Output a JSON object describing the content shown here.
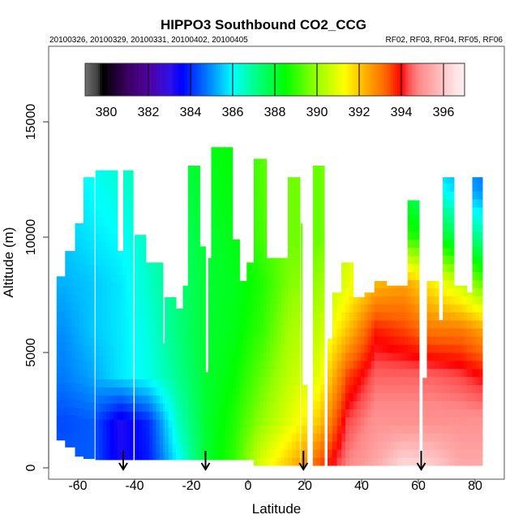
{
  "chart_data": {
    "type": "heatmap",
    "title": "HIPPO3 Southbound CO2_CCG",
    "subtitle_left": "20100326, 20100329, 20100331, 20100402, 20100405",
    "subtitle_right": "RF02, RF03, RF04, RF05, RF06",
    "xlabel": "Latitude",
    "ylabel": "Altitude (m)",
    "xlim": [
      -70,
      90
    ],
    "ylim": [
      -500,
      18300
    ],
    "xticks": [
      -60,
      -40,
      -20,
      0,
      20,
      40,
      60,
      80
    ],
    "xtick_labels": [
      "-60",
      "-40",
      "-20",
      "0",
      "20",
      "40",
      "60",
      "80"
    ],
    "yticks": [
      0,
      5000,
      10000,
      15000
    ],
    "ytick_labels": [
      "0",
      "5000",
      "10000",
      "15000"
    ],
    "colorbar": {
      "range": [
        379,
        397
      ],
      "ticks": [
        380,
        382,
        384,
        386,
        388,
        390,
        392,
        394,
        396
      ],
      "tick_labels": [
        "380",
        "382",
        "384",
        "386",
        "388",
        "390",
        "392",
        "394",
        "396"
      ],
      "stops": [
        [
          379.0,
          "#707070"
        ],
        [
          379.6,
          "#404040"
        ],
        [
          379.8,
          "#000000"
        ],
        [
          381.0,
          "#3a0060"
        ],
        [
          382.0,
          "#5000a0"
        ],
        [
          383.0,
          "#3010e8"
        ],
        [
          383.6,
          "#0000ff"
        ],
        [
          385.0,
          "#0090ff"
        ],
        [
          386.0,
          "#00ffff"
        ],
        [
          387.0,
          "#00ff90"
        ],
        [
          388.5,
          "#00ff00"
        ],
        [
          390.0,
          "#99ff00"
        ],
        [
          391.3,
          "#ffff00"
        ],
        [
          392.3,
          "#ffb000"
        ],
        [
          393.3,
          "#ff6000"
        ],
        [
          394.0,
          "#ff0000"
        ],
        [
          394.3,
          "#ff4848"
        ],
        [
          394.8,
          "#ff8888"
        ],
        [
          395.5,
          "#ffaaaa"
        ],
        [
          396.1,
          "#ffcccc"
        ],
        [
          396.5,
          "#ffe0e0"
        ],
        [
          397.0,
          "#fff0f0"
        ]
      ]
    },
    "arrows_lat": [
      -44,
      -15,
      19.5,
      61
    ],
    "grid": {
      "lat": [
        -65,
        -55,
        -45,
        -35,
        -25,
        -15,
        -5,
        5,
        15,
        25,
        35,
        45,
        55,
        65,
        75,
        82
      ],
      "alt": [
        0,
        2000,
        4000,
        6000,
        8000,
        10000,
        12000,
        14000
      ],
      "co2": [
        [
          384.5,
          384.3,
          384.8,
          385.0,
          385.3,
          385.5,
          385.8,
          386.0
        ],
        [
          384.5,
          384.5,
          385.2,
          385.5,
          385.5,
          385.8,
          386.0,
          386.2
        ],
        [
          383.3,
          383.2,
          385.8,
          385.8,
          385.8,
          386.0,
          386.3,
          386.5
        ],
        [
          383.8,
          384.0,
          386.2,
          386.3,
          386.5,
          386.6,
          386.8,
          387.0
        ],
        [
          385.8,
          386.5,
          387.0,
          387.2,
          387.2,
          387.4,
          387.6,
          387.8
        ],
        [
          388.0,
          388.0,
          388.0,
          388.0,
          388.0,
          388.0,
          388.2,
          388.3
        ],
        [
          389.0,
          388.8,
          388.5,
          388.3,
          388.2,
          388.3,
          388.4,
          388.5
        ],
        [
          391.0,
          390.0,
          389.5,
          389.0,
          388.8,
          389.2,
          389.3,
          389.4
        ],
        [
          392.2,
          391.0,
          390.5,
          390.2,
          389.8,
          389.6,
          389.6,
          389.6
        ],
        [
          393.5,
          392.0,
          391.0,
          390.5,
          390.0,
          389.5,
          389.5,
          389.5
        ],
        [
          394.8,
          394.3,
          393.5,
          392.0,
          391.0,
          390.5,
          390.5,
          390.5
        ],
        [
          395.5,
          395.0,
          394.5,
          393.8,
          392.2,
          391.5,
          391.5,
          391.5
        ],
        [
          396.5,
          395.0,
          394.5,
          393.5,
          392.5,
          389.0,
          388.0,
          388.0
        ],
        [
          396.2,
          395.0,
          394.5,
          393.0,
          391.5,
          388.5,
          386.5,
          385.0
        ],
        [
          395.5,
          395.0,
          394.3,
          393.0,
          390.5,
          387.5,
          385.5,
          384.5
        ],
        [
          395.5,
          395.0,
          394.0,
          392.5,
          389.5,
          387.0,
          385.0,
          384.5
        ]
      ]
    },
    "profiles": [
      {
        "lat": [
          -67.5,
          -64.5
        ],
        "alt": [
          1200,
          8300
        ]
      },
      {
        "lat": [
          -64.5,
          -61
        ],
        "alt": [
          900,
          9400
        ]
      },
      {
        "lat": [
          -61,
          -58
        ],
        "alt": [
          500,
          10600
        ]
      },
      {
        "lat": [
          -58,
          -54.2
        ],
        "alt": [
          400,
          12600
        ]
      },
      {
        "lat": [
          -53.8,
          -46
        ],
        "alt": [
          350,
          12900
        ]
      },
      {
        "lat": [
          -46,
          -44
        ],
        "alt": [
          350,
          9400
        ]
      },
      {
        "lat": [
          -44,
          -40.5
        ],
        "alt": [
          350,
          12900
        ]
      },
      {
        "lat": [
          -40,
          -36
        ],
        "alt": [
          350,
          10100
        ]
      },
      {
        "lat": [
          -36,
          -30
        ],
        "alt": [
          350,
          8900
        ]
      },
      {
        "lat": [
          -30,
          -29.4
        ],
        "alt": [
          350,
          5400
        ]
      },
      {
        "lat": [
          -29.4,
          -25.4
        ],
        "alt": [
          350,
          7400
        ]
      },
      {
        "lat": [
          -25.4,
          -23
        ],
        "alt": [
          350,
          6900
        ]
      },
      {
        "lat": [
          -23,
          -21.2
        ],
        "alt": [
          350,
          7900
        ]
      },
      {
        "lat": [
          -21.2,
          -17
        ],
        "alt": [
          350,
          13100
        ]
      },
      {
        "lat": [
          -17,
          -15
        ],
        "alt": [
          350,
          9600
        ]
      },
      {
        "lat": [
          -15,
          -14
        ],
        "alt": [
          350,
          4150
        ]
      },
      {
        "lat": [
          -14,
          -13
        ],
        "alt": [
          350,
          9100
        ]
      },
      {
        "lat": [
          -13,
          -5.5
        ],
        "alt": [
          350,
          13900
        ]
      },
      {
        "lat": [
          -5.5,
          -3
        ],
        "alt": [
          350,
          9900
        ]
      },
      {
        "lat": [
          -3,
          -0.5
        ],
        "alt": [
          350,
          8100
        ]
      },
      {
        "lat": [
          -0.5,
          2
        ],
        "alt": [
          350,
          8900
        ]
      },
      {
        "lat": [
          2,
          6.5
        ],
        "alt": [
          100,
          13400
        ]
      },
      {
        "lat": [
          6.5,
          14
        ],
        "alt": [
          100,
          9100
        ]
      },
      {
        "lat": [
          14,
          18.3
        ],
        "alt": [
          100,
          12600
        ]
      },
      {
        "lat": [
          18.6,
          19.1
        ],
        "alt": [
          100,
          10600
        ]
      },
      {
        "lat": [
          19.1,
          20.8
        ],
        "alt": [
          100,
          3600
        ]
      },
      {
        "lat": [
          22.8,
          26.9
        ],
        "alt": [
          100,
          13100
        ]
      },
      {
        "lat": [
          28,
          29.7
        ],
        "alt": [
          100,
          5600
        ]
      },
      {
        "lat": [
          29.7,
          32.9
        ],
        "alt": [
          100,
          7600
        ]
      },
      {
        "lat": [
          32.9,
          37.1
        ],
        "alt": [
          100,
          8900
        ]
      },
      {
        "lat": [
          37.1,
          41
        ],
        "alt": [
          100,
          7400
        ]
      },
      {
        "lat": [
          41,
          44.5
        ],
        "alt": [
          100,
          7600
        ]
      },
      {
        "lat": [
          44.5,
          48.8
        ],
        "alt": [
          100,
          8100
        ]
      },
      {
        "lat": [
          48.8,
          56.2
        ],
        "alt": [
          100,
          7900
        ]
      },
      {
        "lat": [
          56.2,
          60.3
        ],
        "alt": [
          100,
          11600
        ]
      },
      {
        "lat": [
          61.5,
          63
        ],
        "alt": [
          100,
          3900
        ]
      },
      {
        "lat": [
          63,
          67.2
        ],
        "alt": [
          100,
          8100
        ]
      },
      {
        "lat": [
          67.2,
          68.6
        ],
        "alt": [
          100,
          6400
        ]
      },
      {
        "lat": [
          68.6,
          72.6
        ],
        "alt": [
          100,
          12600
        ]
      },
      {
        "lat": [
          72.6,
          77.1
        ],
        "alt": [
          100,
          7900
        ]
      },
      {
        "lat": [
          77.1,
          79
        ],
        "alt": [
          100,
          7600
        ]
      },
      {
        "lat": [
          79,
          82.6
        ],
        "alt": [
          100,
          12600
        ]
      }
    ]
  }
}
